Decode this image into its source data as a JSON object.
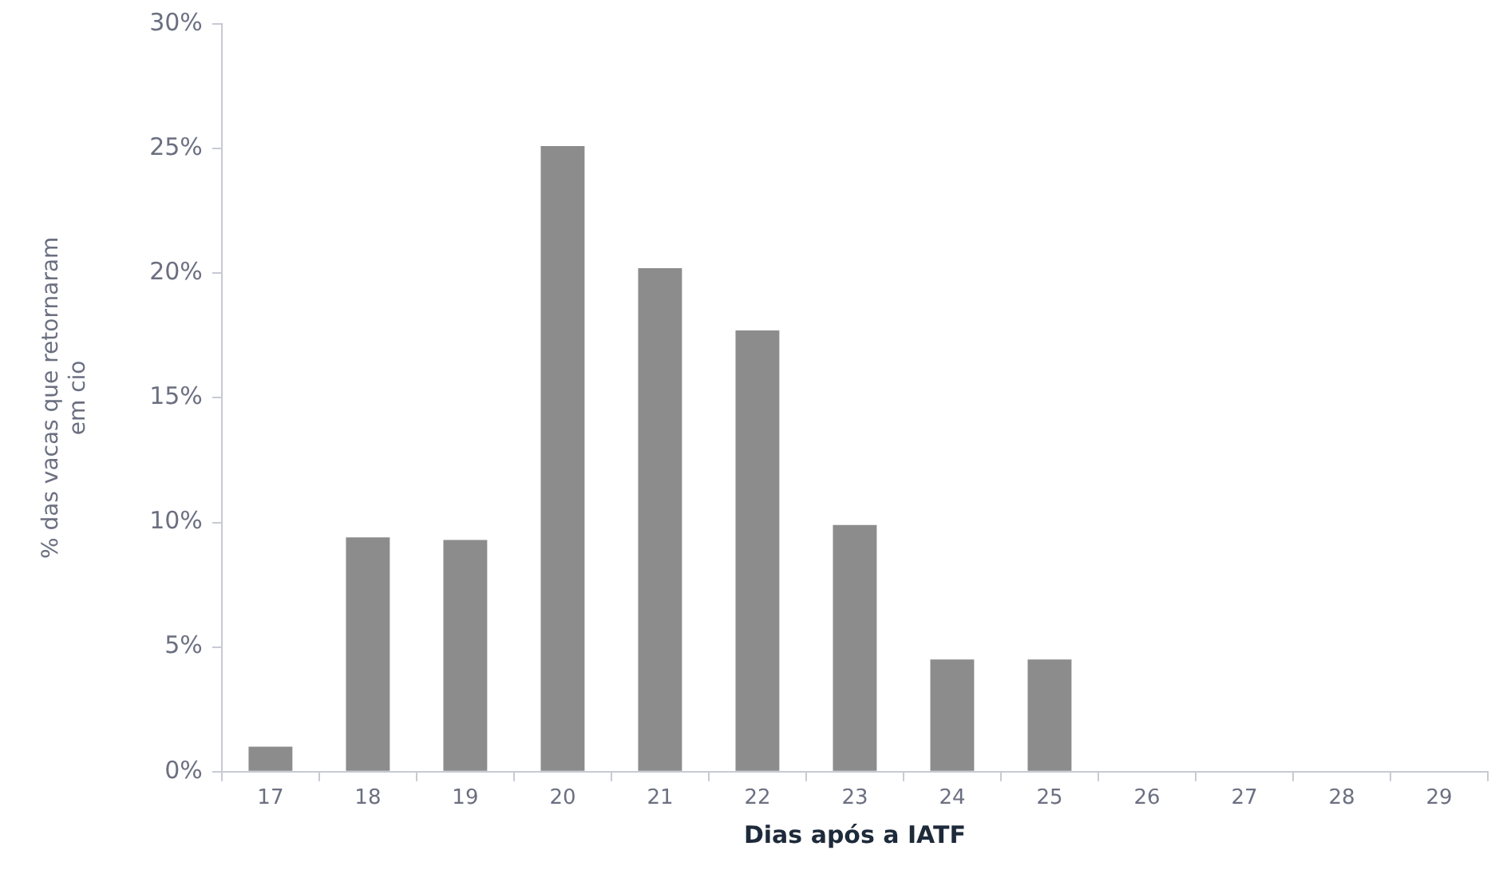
{
  "chart_data": {
    "type": "bar",
    "xlabel": "Dias após a IATF",
    "ylabel": "% das vacas que retornaram\nem cio",
    "categories": [
      "17",
      "18",
      "19",
      "20",
      "21",
      "22",
      "23",
      "24",
      "25",
      "26",
      "27",
      "28",
      "29"
    ],
    "values": [
      1.0,
      9.4,
      9.3,
      25.1,
      20.2,
      17.7,
      9.9,
      4.5,
      4.5,
      0,
      0,
      0,
      0
    ],
    "color": "#8c8c8c",
    "ylim": [
      0,
      30
    ],
    "yticks": [
      {
        "value": 0,
        "label": "0%"
      },
      {
        "value": 5,
        "label": "5%"
      },
      {
        "value": 10,
        "label": "10%"
      },
      {
        "value": 15,
        "label": "15%"
      },
      {
        "value": 20,
        "label": "20%"
      },
      {
        "value": 25,
        "label": "25%"
      },
      {
        "value": 30,
        "label": "30%"
      }
    ],
    "grid": false,
    "legend": false
  }
}
